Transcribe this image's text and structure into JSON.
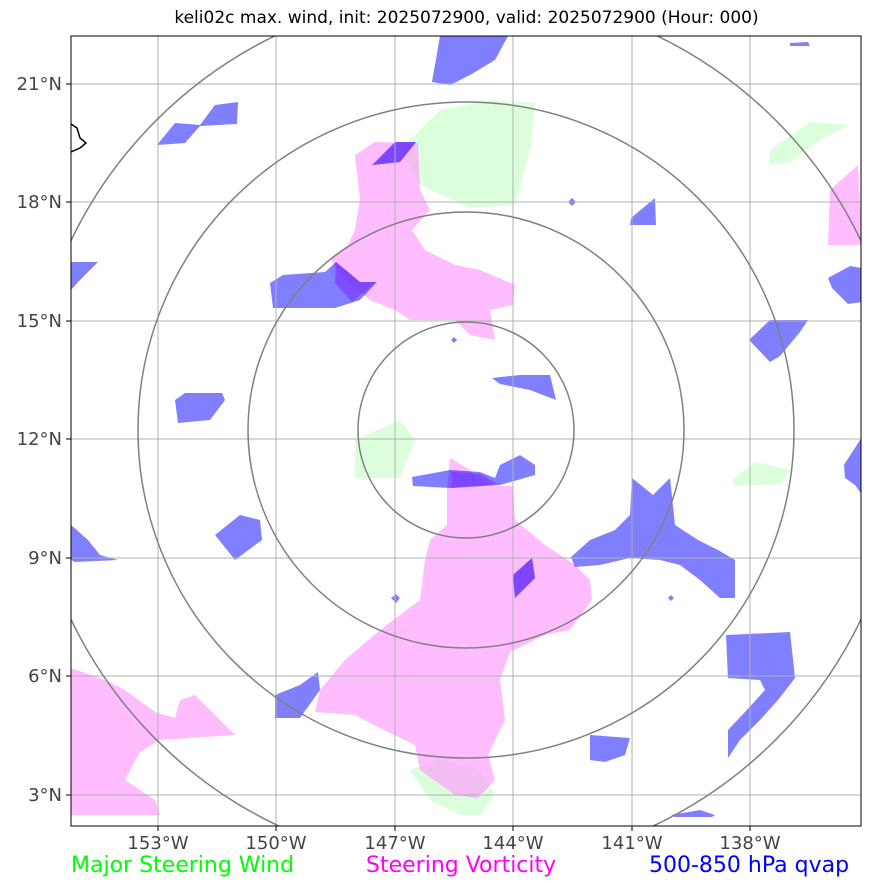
{
  "title": "keli02c max. wind, init: 2025072900, valid: 2025072900 (Hour: 000)",
  "lat_labels": [
    "21°N",
    "18°N",
    "15°N",
    "12°N",
    "9°N",
    "6°N",
    "3°N"
  ],
  "lon_labels": [
    "153°W",
    "150°W",
    "147°W",
    "144°W",
    "141°W",
    "138°W"
  ],
  "legend": [
    {
      "label": "Major Steering Wind",
      "color": "#00ff00"
    },
    {
      "label": "Steering Vorticity",
      "color": "#ff00ff"
    },
    {
      "label": "500-850 hPa qvap",
      "color": "#0000ff"
    }
  ],
  "map": {
    "lat_range": [
      2.3,
      22.3
    ],
    "lon_range": [
      -155.0,
      -135.0
    ],
    "center": {
      "lat": 12.3,
      "lon": -145.4
    },
    "range_rings": 4,
    "colors": {
      "wind": "#ccffcc",
      "vorticity": "#ff99ff",
      "qvap": "#0000ff",
      "overlap": "#7f3fff",
      "rings": "#808080",
      "gridlines": "#b0b0b0"
    }
  }
}
